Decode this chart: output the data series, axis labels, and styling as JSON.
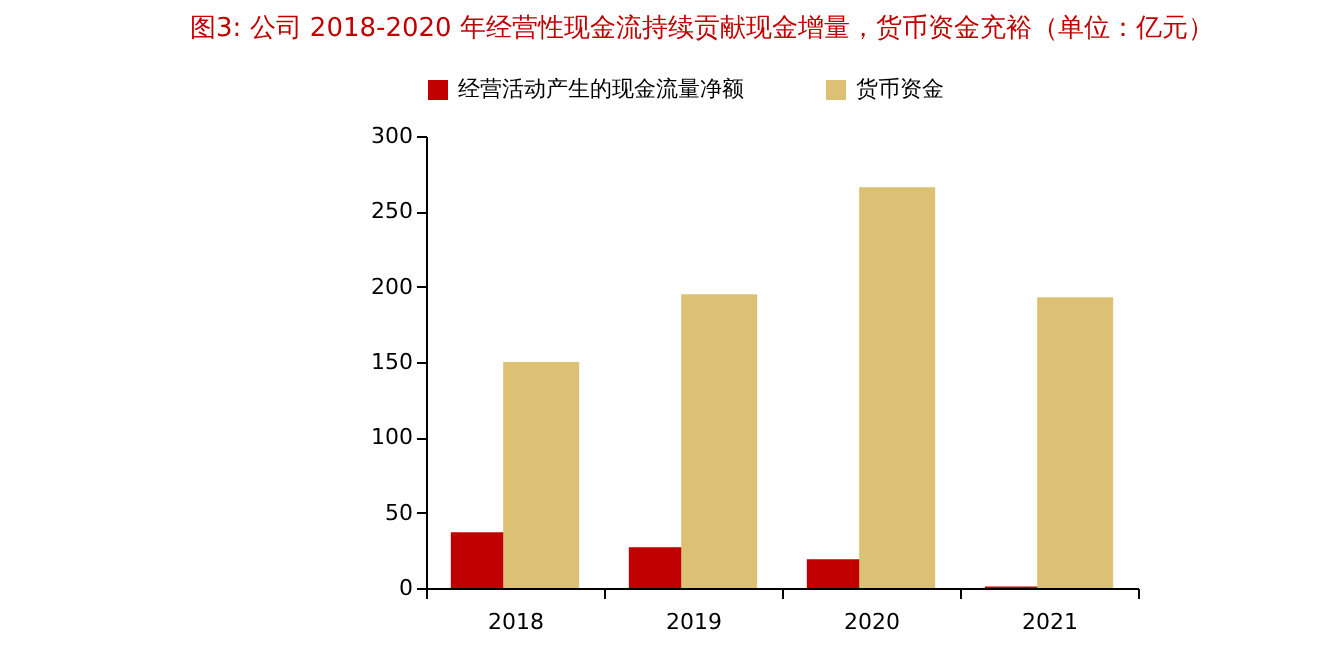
{
  "chart_data": {
    "type": "bar",
    "title": "图3:  公司 2018-2020 年经营性现金流持续贡献现金增量，货币资金充裕（单位：亿元）",
    "categories": [
      "2018",
      "2019",
      "2020",
      "2021"
    ],
    "series": [
      {
        "name": "经营活动产生的现金流量净额",
        "color": "#c00000",
        "values": [
          37,
          27,
          19,
          1
        ]
      },
      {
        "name": "货币资金",
        "color": "#dcc174",
        "values": [
          150,
          195,
          266,
          193
        ]
      }
    ],
    "ylim": [
      0,
      300
    ],
    "yticks": [
      0,
      50,
      100,
      150,
      200,
      250,
      300
    ],
    "grid": false,
    "legend": "top"
  }
}
